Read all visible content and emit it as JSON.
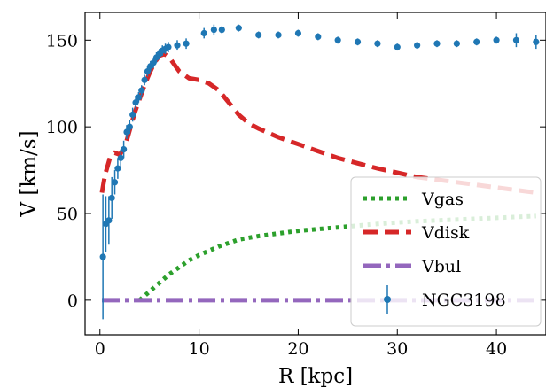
{
  "chart_data": {
    "type": "line",
    "xlabel": "R [kpc]",
    "ylabel": "V [km/s]",
    "xlim": [
      -1.5,
      45
    ],
    "ylim": [
      -20,
      166
    ],
    "xticks": [
      0,
      10,
      20,
      30,
      40
    ],
    "yticks": [
      0,
      50,
      100,
      150
    ],
    "grid": false,
    "legend": "lower-right",
    "series": [
      {
        "name": "Vgas",
        "style": "dotted",
        "color": "#2ca02c",
        "x": [
          4.0,
          5,
          6,
          7,
          8,
          9,
          10,
          12,
          14,
          16,
          18,
          20,
          22,
          24,
          26,
          28,
          30,
          32,
          34,
          36,
          38,
          40,
          42,
          44
        ],
        "y": [
          0,
          5,
          10,
          15,
          19,
          23,
          26,
          31,
          35,
          37,
          38.5,
          40,
          41,
          42,
          43,
          44,
          44.8,
          45.5,
          46,
          46.5,
          47,
          47.5,
          48,
          48.5
        ]
      },
      {
        "name": "Vdisk",
        "style": "dashed",
        "color": "#d62728",
        "x": [
          0.2,
          0.5,
          1,
          1.5,
          2,
          2.5,
          3,
          3.5,
          4,
          4.5,
          5,
          5.5,
          6,
          6.5,
          7,
          7.5,
          8,
          9,
          10,
          11,
          12,
          13,
          14,
          15,
          16,
          18,
          20,
          22,
          24,
          26,
          28,
          30,
          32,
          34,
          36,
          38,
          40,
          42,
          44
        ],
        "y": [
          62,
          72,
          82,
          85,
          84,
          88,
          98,
          108,
          116,
          124,
          131,
          137,
          141,
          142,
          140,
          136,
          132,
          128,
          127,
          125,
          121,
          114,
          107,
          102,
          99,
          94,
          90,
          86,
          82,
          79,
          76,
          73.5,
          71,
          69.5,
          68,
          66.5,
          65,
          63.5,
          62
        ]
      },
      {
        "name": "Vbul",
        "style": "dashdot",
        "color": "#9467bd",
        "x": [
          0.2,
          44
        ],
        "y": [
          0,
          0
        ]
      }
    ],
    "observed": {
      "name": "NGC3198",
      "color": "#1f77b4",
      "x": [
        0.3,
        0.6,
        0.9,
        1.2,
        1.5,
        1.8,
        2.1,
        2.4,
        2.7,
        3.0,
        3.3,
        3.6,
        3.9,
        4.2,
        4.5,
        4.8,
        5.1,
        5.4,
        5.7,
        6.0,
        6.3,
        6.6,
        6.9,
        7.8,
        8.7,
        10.5,
        11.5,
        12.3,
        14.0,
        16.0,
        18.0,
        20.0,
        22.0,
        24.0,
        26.0,
        28.0,
        30.0,
        32.0,
        34.0,
        36.0,
        38.0,
        40.0,
        42.0,
        44.0
      ],
      "y": [
        25,
        44,
        46,
        59,
        68,
        76,
        82,
        87,
        97,
        100,
        107,
        114,
        117,
        121,
        127,
        132,
        135,
        137,
        140,
        142,
        144,
        145,
        146,
        147,
        148,
        154,
        156,
        156,
        157,
        153,
        153,
        154,
        152,
        150,
        149,
        148,
        146,
        147,
        148,
        148,
        149,
        150,
        150,
        149
      ],
      "err": [
        36,
        16,
        14,
        12,
        7,
        6,
        5,
        5,
        4,
        4,
        4,
        4,
        3,
        3,
        3,
        3,
        3,
        3,
        3,
        3,
        3,
        3,
        3,
        3,
        3,
        3,
        3,
        2,
        2,
        2,
        2,
        2,
        2,
        2,
        2,
        2,
        2,
        2,
        2,
        2,
        2,
        2,
        4,
        4
      ]
    }
  }
}
